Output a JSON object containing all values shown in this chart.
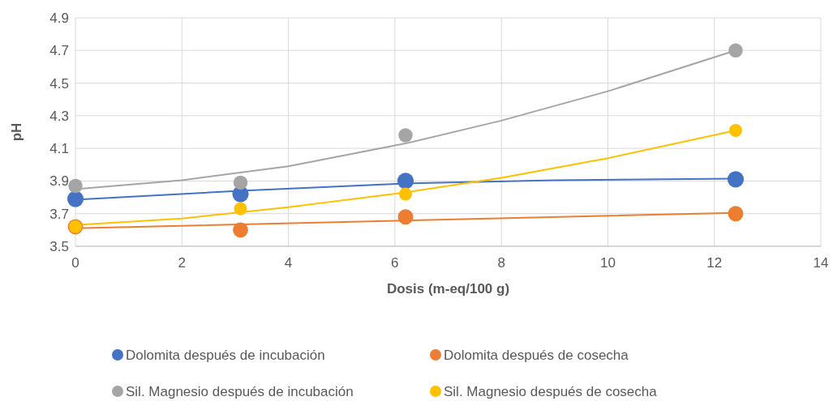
{
  "chart_data": {
    "type": "scatter",
    "xlabel": "Dosis (m-eq/100 g)",
    "ylabel": "pH",
    "xlim": [
      0,
      14
    ],
    "xticks": [
      0,
      2,
      4,
      6,
      8,
      10,
      12,
      14
    ],
    "ylim": [
      3.5,
      4.9
    ],
    "yticks": [
      3.5,
      3.7,
      3.9,
      4.1,
      4.3,
      4.5,
      4.7,
      4.9
    ],
    "grid": true,
    "legend": "bottom",
    "marker": "circle",
    "series": [
      {
        "type": "line",
        "marker": "none",
        "color": "#4472c4",
        "x": [
          0,
          3.1,
          6.2,
          9,
          12.4
        ],
        "values": [
          3.785,
          3.84,
          3.885,
          3.905,
          3.915
        ]
      },
      {
        "type": "line",
        "marker": "none",
        "color": "#ed7d31",
        "x": [
          0,
          12.4
        ],
        "values": [
          3.61,
          3.705
        ]
      },
      {
        "type": "line",
        "marker": "none",
        "color": "#a5a5a5",
        "x": [
          0,
          2,
          4,
          6.2,
          8,
          10,
          12.4
        ],
        "values": [
          3.85,
          3.905,
          3.99,
          4.13,
          4.27,
          4.45,
          4.7
        ]
      },
      {
        "type": "line",
        "marker": "none",
        "color": "#ffc000",
        "x": [
          0,
          2,
          4,
          6.2,
          8,
          10,
          12.4
        ],
        "values": [
          3.63,
          3.67,
          3.74,
          3.83,
          3.92,
          4.04,
          4.21
        ]
      },
      {
        "name": "Dolomita después de incubación",
        "color": "#4472c4",
        "x": [
          0,
          3.1,
          6.2,
          12.4
        ],
        "values": [
          3.79,
          3.82,
          3.9,
          3.91
        ]
      },
      {
        "name": "Dolomita después de cosecha",
        "color": "#ed7d31",
        "x": [
          0,
          3.1,
          6.2,
          12.4
        ],
        "values": [
          3.62,
          3.6,
          3.68,
          3.7
        ]
      },
      {
        "name": "Sil. Magnesio después de incubación",
        "color": "#a5a5a5",
        "x": [
          0,
          3.1,
          6.2,
          12.4
        ],
        "values": [
          3.87,
          3.89,
          4.18,
          4.7
        ]
      },
      {
        "name": "Sil. Magnesio después de cosecha",
        "color": "#ffc000",
        "x": [
          0,
          3.1,
          6.2,
          12.4
        ],
        "values": [
          3.62,
          3.73,
          3.82,
          4.21
        ]
      }
    ]
  }
}
